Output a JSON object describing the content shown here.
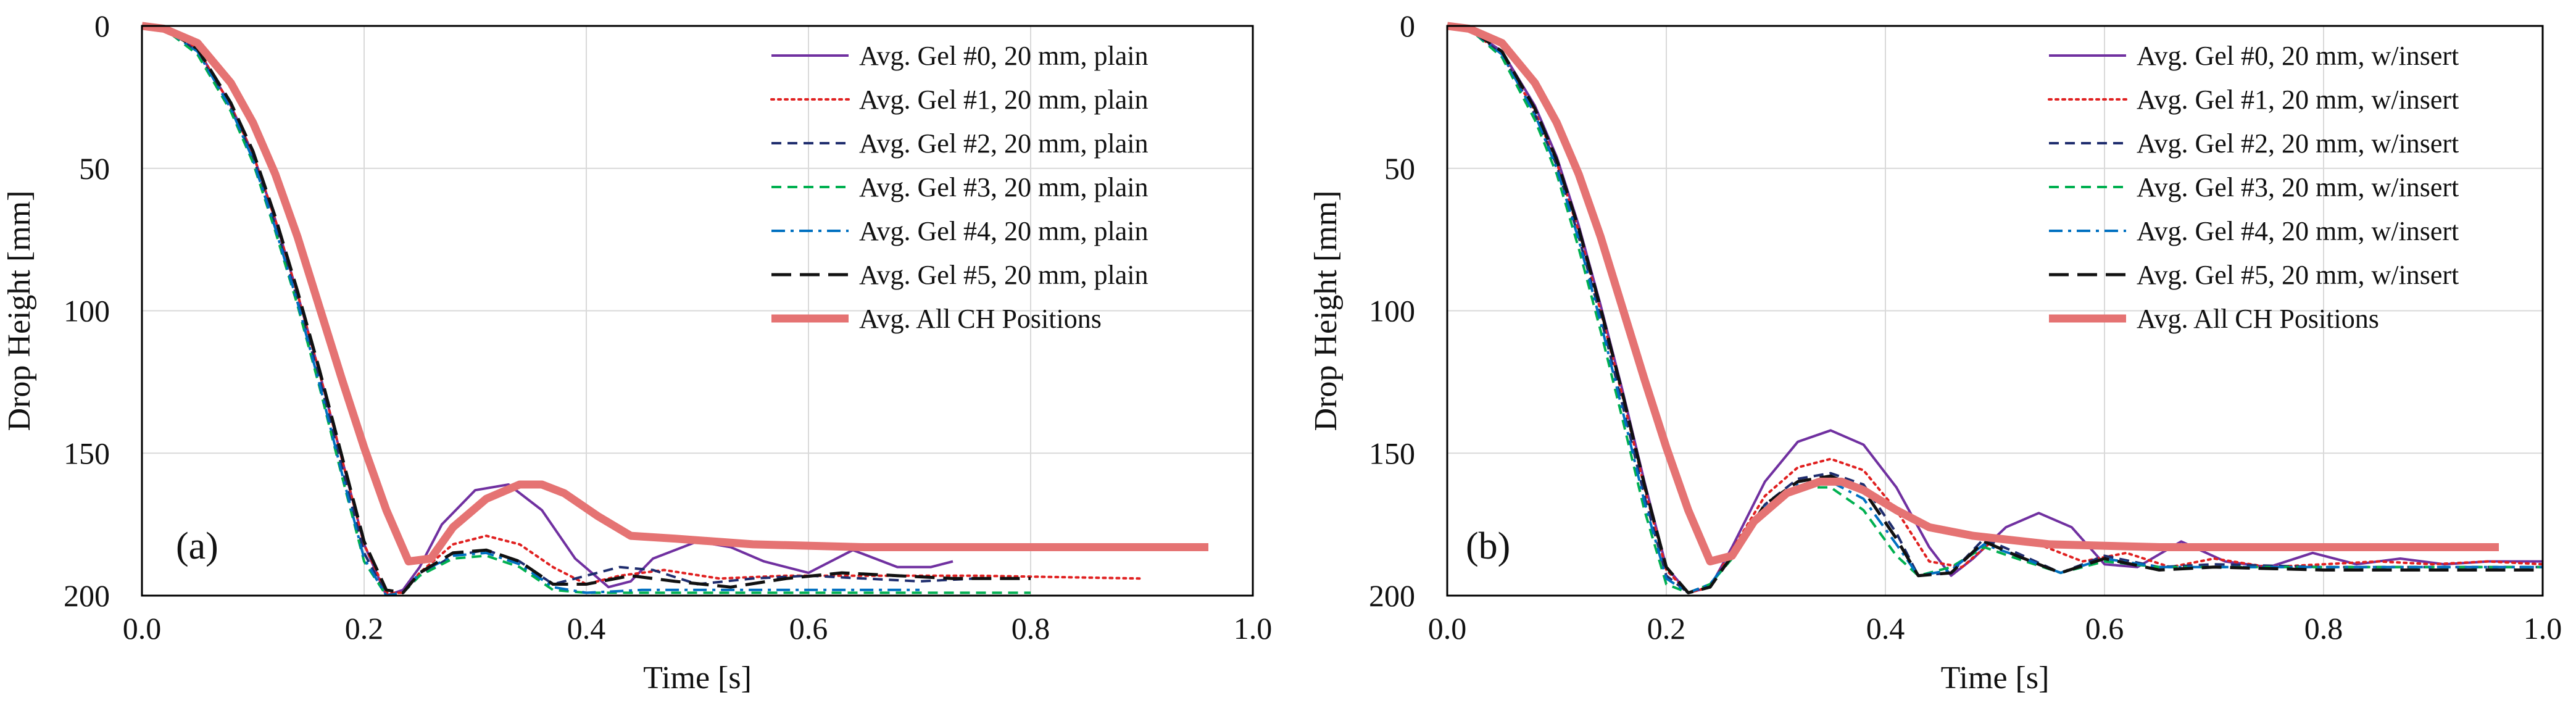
{
  "chart_data": [
    {
      "type": "line",
      "panel_label": "(a)",
      "xlabel": "Time [s]",
      "ylabel": "Drop Height [mm]",
      "xlim": [
        0.0,
        1.0
      ],
      "ylim": [
        0,
        200
      ],
      "y_inverted": true,
      "xticks": [
        0.0,
        0.2,
        0.4,
        0.6,
        0.8,
        1.0
      ],
      "xtick_labels": [
        "0.0",
        "0.2",
        "0.4",
        "0.6",
        "0.8",
        "1.0"
      ],
      "yticks": [
        0,
        50,
        100,
        150,
        200
      ],
      "ytick_labels": [
        "0",
        "50",
        "100",
        "150",
        "200"
      ],
      "grid": true,
      "legend_position": "top-right",
      "series": [
        {
          "name": "Avg. Gel #0, 20 mm, plain",
          "color": "#7030a0",
          "style": "solid",
          "x": [
            0,
            0.02,
            0.05,
            0.08,
            0.1,
            0.12,
            0.14,
            0.16,
            0.18,
            0.2,
            0.22,
            0.235,
            0.25,
            0.27,
            0.3,
            0.33,
            0.36,
            0.39,
            0.42,
            0.44,
            0.46,
            0.5,
            0.53,
            0.56,
            0.6,
            0.64,
            0.68,
            0.71,
            0.73
          ],
          "y": [
            0,
            1,
            8,
            28,
            45,
            68,
            94,
            122,
            152,
            182,
            200,
            198,
            190,
            175,
            163,
            161,
            170,
            187,
            197,
            195,
            187,
            181,
            183,
            188,
            192,
            184,
            190,
            190,
            188
          ]
        },
        {
          "name": "Avg. Gel #1, 20 mm, plain",
          "color": "#e02020",
          "style": "dotted",
          "x": [
            0,
            0.02,
            0.05,
            0.08,
            0.1,
            0.12,
            0.14,
            0.16,
            0.18,
            0.2,
            0.22,
            0.235,
            0.25,
            0.28,
            0.31,
            0.34,
            0.37,
            0.4,
            0.43,
            0.47,
            0.52,
            0.58,
            0.65,
            0.75,
            0.9
          ],
          "y": [
            0,
            1,
            8,
            28,
            45,
            68,
            94,
            122,
            152,
            182,
            199,
            199,
            192,
            182,
            179,
            182,
            190,
            196,
            193,
            191,
            194,
            193,
            193,
            193,
            194
          ]
        },
        {
          "name": "Avg. Gel #2, 20 mm, plain",
          "color": "#1f2d6e",
          "style": "dashed",
          "x": [
            0,
            0.02,
            0.05,
            0.08,
            0.1,
            0.12,
            0.14,
            0.16,
            0.18,
            0.2,
            0.22,
            0.235,
            0.25,
            0.28,
            0.31,
            0.34,
            0.37,
            0.4,
            0.43,
            0.46,
            0.5,
            0.55,
            0.6,
            0.65,
            0.7,
            0.75
          ],
          "y": [
            0,
            1,
            9,
            29,
            46,
            70,
            96,
            124,
            155,
            185,
            200,
            199,
            193,
            186,
            184,
            188,
            196,
            193,
            190,
            191,
            196,
            194,
            193,
            194,
            195,
            194
          ]
        },
        {
          "name": "Avg. Gel #3, 20 mm, plain",
          "color": "#00b050",
          "style": "dashed",
          "x": [
            0,
            0.02,
            0.05,
            0.08,
            0.1,
            0.12,
            0.14,
            0.16,
            0.18,
            0.2,
            0.22,
            0.235,
            0.25,
            0.28,
            0.31,
            0.34,
            0.37,
            0.4,
            0.45,
            0.5,
            0.6,
            0.7,
            0.8
          ],
          "y": [
            0,
            1,
            10,
            30,
            48,
            72,
            98,
            127,
            158,
            188,
            200,
            199,
            193,
            187,
            186,
            190,
            198,
            199,
            199,
            199,
            199,
            199,
            199
          ]
        },
        {
          "name": "Avg. Gel #4, 20 mm, plain",
          "color": "#0070c0",
          "style": "dashdot",
          "x": [
            0,
            0.02,
            0.05,
            0.08,
            0.1,
            0.12,
            0.14,
            0.16,
            0.18,
            0.2,
            0.22,
            0.235,
            0.25,
            0.28,
            0.31,
            0.34,
            0.37,
            0.4,
            0.45,
            0.5,
            0.6,
            0.7
          ],
          "y": [
            0,
            1,
            9,
            29,
            47,
            71,
            97,
            126,
            157,
            187,
            200,
            199,
            192,
            186,
            185,
            189,
            197,
            199,
            198,
            198,
            198,
            198
          ]
        },
        {
          "name": "Avg. Gel #5, 20 mm, plain",
          "color": "#111111",
          "style": "longdash",
          "x": [
            0,
            0.02,
            0.05,
            0.08,
            0.1,
            0.12,
            0.14,
            0.16,
            0.18,
            0.2,
            0.22,
            0.235,
            0.25,
            0.28,
            0.31,
            0.34,
            0.37,
            0.4,
            0.44,
            0.48,
            0.53,
            0.58,
            0.63,
            0.68,
            0.73,
            0.8
          ],
          "y": [
            0,
            1,
            8,
            27,
            44,
            67,
            93,
            121,
            151,
            181,
            198,
            199,
            192,
            185,
            184,
            188,
            196,
            196,
            193,
            195,
            197,
            194,
            192,
            193,
            194,
            194
          ]
        },
        {
          "name": "Avg. All CH Positions",
          "color": "#e57373",
          "style": "thick",
          "x": [
            0,
            0.02,
            0.05,
            0.08,
            0.1,
            0.12,
            0.14,
            0.16,
            0.18,
            0.2,
            0.22,
            0.24,
            0.26,
            0.28,
            0.31,
            0.34,
            0.36,
            0.38,
            0.41,
            0.44,
            0.48,
            0.55,
            0.65,
            0.8,
            0.96
          ],
          "y": [
            0,
            1,
            6,
            20,
            34,
            52,
            74,
            99,
            124,
            148,
            170,
            188,
            187,
            176,
            166,
            161,
            161,
            164,
            172,
            179,
            180,
            182,
            183,
            183,
            183
          ]
        }
      ]
    },
    {
      "type": "line",
      "panel_label": "(b)",
      "xlabel": "Time [s]",
      "ylabel": "Drop Height [mm]",
      "xlim": [
        0.0,
        1.0
      ],
      "ylim": [
        0,
        200
      ],
      "y_inverted": true,
      "xticks": [
        0.0,
        0.2,
        0.4,
        0.6,
        0.8,
        1.0
      ],
      "xtick_labels": [
        "0.0",
        "0.2",
        "0.4",
        "0.6",
        "0.8",
        "1.0"
      ],
      "yticks": [
        0,
        50,
        100,
        150,
        200
      ],
      "ytick_labels": [
        "0",
        "50",
        "100",
        "150",
        "200"
      ],
      "grid": true,
      "legend_position": "top-right",
      "series": [
        {
          "name": "Avg. Gel #0, 20 mm, w/insert",
          "color": "#7030a0",
          "style": "solid",
          "x": [
            0,
            0.02,
            0.05,
            0.08,
            0.1,
            0.12,
            0.14,
            0.16,
            0.18,
            0.2,
            0.22,
            0.24,
            0.26,
            0.29,
            0.32,
            0.35,
            0.38,
            0.41,
            0.44,
            0.46,
            0.48,
            0.51,
            0.54,
            0.57,
            0.6,
            0.63,
            0.67,
            0.71,
            0.75,
            0.79,
            0.83,
            0.87,
            0.91,
            0.95,
            1.0
          ],
          "y": [
            0,
            1,
            9,
            28,
            46,
            70,
            98,
            128,
            160,
            190,
            199,
            197,
            183,
            160,
            146,
            142,
            147,
            162,
            183,
            193,
            187,
            176,
            171,
            176,
            189,
            190,
            181,
            188,
            190,
            185,
            189,
            187,
            189,
            188,
            188
          ]
        },
        {
          "name": "Avg. Gel #1, 20 mm, w/insert",
          "color": "#e02020",
          "style": "dotted",
          "x": [
            0,
            0.02,
            0.05,
            0.08,
            0.1,
            0.12,
            0.14,
            0.16,
            0.18,
            0.2,
            0.22,
            0.24,
            0.26,
            0.29,
            0.32,
            0.35,
            0.38,
            0.41,
            0.44,
            0.47,
            0.5,
            0.54,
            0.58,
            0.62,
            0.66,
            0.7,
            0.75,
            0.8,
            0.85,
            0.9,
            0.95,
            1.0
          ],
          "y": [
            0,
            1,
            10,
            30,
            48,
            72,
            100,
            130,
            162,
            191,
            199,
            197,
            184,
            165,
            155,
            152,
            156,
            170,
            188,
            190,
            180,
            182,
            188,
            185,
            190,
            187,
            190,
            189,
            188,
            189,
            188,
            189
          ]
        },
        {
          "name": "Avg. Gel #2, 20 mm, w/insert",
          "color": "#1f2d6e",
          "style": "dashed",
          "x": [
            0,
            0.02,
            0.05,
            0.08,
            0.1,
            0.12,
            0.14,
            0.16,
            0.18,
            0.2,
            0.22,
            0.24,
            0.26,
            0.29,
            0.32,
            0.35,
            0.38,
            0.41,
            0.43,
            0.46,
            0.49,
            0.52,
            0.56,
            0.6,
            0.65,
            0.7,
            0.8,
            0.9,
            1.0
          ],
          "y": [
            0,
            1,
            10,
            31,
            49,
            74,
            102,
            133,
            165,
            193,
            199,
            196,
            186,
            168,
            159,
            157,
            161,
            178,
            193,
            192,
            180,
            185,
            192,
            186,
            190,
            189,
            190,
            190,
            190
          ]
        },
        {
          "name": "Avg. Gel #3, 20 mm, w/insert",
          "color": "#00b050",
          "style": "dashed",
          "x": [
            0,
            0.02,
            0.05,
            0.08,
            0.1,
            0.12,
            0.14,
            0.16,
            0.18,
            0.2,
            0.22,
            0.24,
            0.26,
            0.29,
            0.32,
            0.35,
            0.38,
            0.41,
            0.43,
            0.46,
            0.49,
            0.52,
            0.56,
            0.6,
            0.65,
            0.7,
            0.8,
            0.9,
            1.0
          ],
          "y": [
            0,
            1,
            11,
            33,
            52,
            78,
            107,
            138,
            170,
            196,
            199,
            196,
            187,
            170,
            162,
            162,
            170,
            186,
            193,
            190,
            183,
            187,
            192,
            188,
            190,
            190,
            190,
            190,
            190
          ]
        },
        {
          "name": "Avg. Gel #4, 20 mm, w/insert",
          "color": "#0070c0",
          "style": "dashdot",
          "x": [
            0,
            0.02,
            0.05,
            0.08,
            0.1,
            0.12,
            0.14,
            0.16,
            0.18,
            0.2,
            0.22,
            0.24,
            0.26,
            0.29,
            0.32,
            0.35,
            0.38,
            0.41,
            0.43,
            0.46,
            0.49,
            0.52,
            0.56,
            0.6,
            0.65,
            0.7,
            0.8,
            0.9,
            1.0
          ],
          "y": [
            0,
            1,
            10,
            31,
            50,
            75,
            104,
            135,
            167,
            194,
            199,
            196,
            186,
            169,
            161,
            160,
            166,
            182,
            193,
            191,
            182,
            186,
            192,
            187,
            190,
            190,
            190,
            190,
            190
          ]
        },
        {
          "name": "Avg. Gel #5, 20 mm, w/insert",
          "color": "#111111",
          "style": "longdash",
          "x": [
            0,
            0.02,
            0.05,
            0.08,
            0.1,
            0.12,
            0.14,
            0.16,
            0.18,
            0.2,
            0.22,
            0.24,
            0.26,
            0.29,
            0.32,
            0.35,
            0.38,
            0.41,
            0.43,
            0.46,
            0.49,
            0.52,
            0.56,
            0.6,
            0.65,
            0.7,
            0.8,
            0.9,
            1.0
          ],
          "y": [
            0,
            1,
            9,
            29,
            47,
            71,
            99,
            129,
            161,
            190,
            199,
            197,
            186,
            168,
            160,
            158,
            163,
            180,
            193,
            192,
            181,
            186,
            192,
            187,
            191,
            190,
            191,
            191,
            191
          ]
        },
        {
          "name": "Avg. All CH Positions",
          "color": "#e57373",
          "style": "thick",
          "x": [
            0,
            0.02,
            0.05,
            0.08,
            0.1,
            0.12,
            0.14,
            0.16,
            0.18,
            0.2,
            0.22,
            0.24,
            0.26,
            0.28,
            0.31,
            0.34,
            0.36,
            0.38,
            0.41,
            0.44,
            0.48,
            0.55,
            0.65,
            0.8,
            0.96
          ],
          "y": [
            0,
            1,
            6,
            20,
            34,
            52,
            74,
            99,
            124,
            148,
            170,
            188,
            186,
            174,
            164,
            160,
            160,
            163,
            170,
            176,
            179,
            182,
            183,
            183,
            183
          ]
        }
      ]
    }
  ]
}
